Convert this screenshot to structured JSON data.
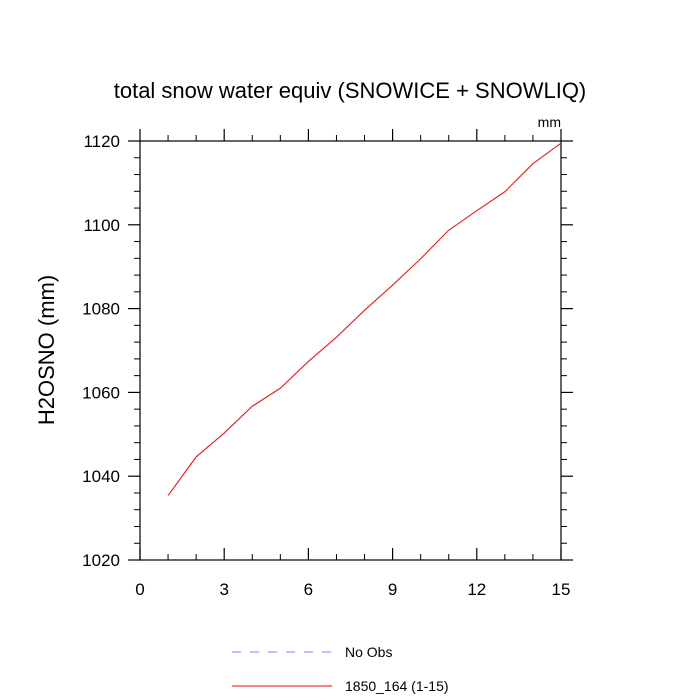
{
  "chart_data": {
    "type": "line",
    "title": "total snow water equiv (SNOWICE + SNOWLIQ)",
    "units": "mm",
    "xlabel": "",
    "ylabel": "H2OSNO  (mm)",
    "xlim": [
      0,
      15
    ],
    "ylim": [
      1020,
      1120
    ],
    "xticks": [
      0,
      3,
      6,
      9,
      12,
      15
    ],
    "yticks": [
      1020,
      1040,
      1060,
      1080,
      1100,
      1120
    ],
    "grid": false,
    "legend_position": "bottom",
    "series": [
      {
        "name": "No Obs",
        "color": "#8080ff",
        "dash": "dashed",
        "x": [],
        "y": []
      },
      {
        "name": "1850_164 (1-15)",
        "color": "#ff0000",
        "dash": "solid",
        "x": [
          1,
          2,
          3,
          4,
          5,
          6,
          7,
          8,
          9,
          10,
          11,
          12,
          13,
          14,
          15
        ],
        "y": [
          1035.4,
          1044.6,
          1050.3,
          1056.7,
          1061.0,
          1067.4,
          1073.2,
          1079.6,
          1085.6,
          1091.9,
          1098.7,
          1103.4,
          1107.9,
          1114.6,
          1119.5
        ]
      }
    ]
  }
}
